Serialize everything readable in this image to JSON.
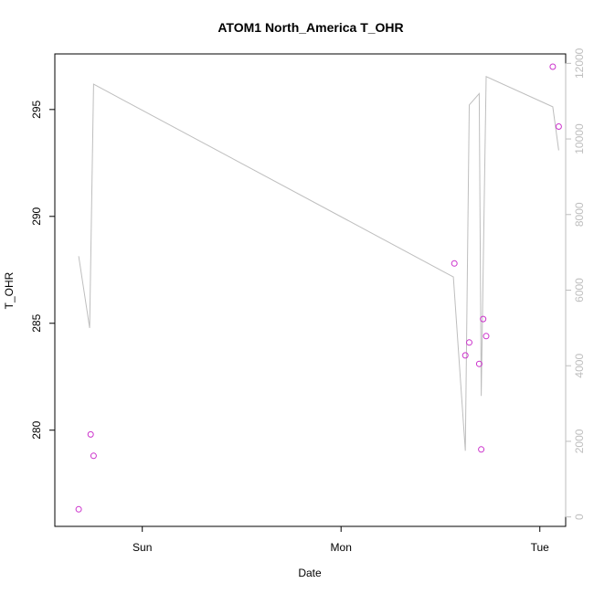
{
  "chart_data": {
    "type": "scatter",
    "title": "ATOM1 North_America T_OHR",
    "xlabel": "Date",
    "ylabel": "T_OHR",
    "x_ticks": [
      "Sun",
      "Mon",
      "Tue"
    ],
    "xlim_days": [
      -0.44,
      2.13
    ],
    "ylim": [
      275.5,
      297.6
    ],
    "y_ticks": [
      280,
      285,
      290,
      295
    ],
    "y2lim": [
      -250,
      12250
    ],
    "y2_ticks": [
      0,
      2000,
      4000,
      6000,
      8000,
      10000,
      12000
    ],
    "colors": {
      "points": "#cc33cc",
      "line": "#bebebe",
      "axis": "#000000",
      "axis_right": "#bebebe"
    },
    "points": [
      {
        "x": -0.32,
        "y": 276.3
      },
      {
        "x": -0.26,
        "y": 279.8
      },
      {
        "x": -0.245,
        "y": 278.8
      },
      {
        "x": 1.57,
        "y": 287.8
      },
      {
        "x": 1.625,
        "y": 283.5
      },
      {
        "x": 1.645,
        "y": 284.1
      },
      {
        "x": 1.695,
        "y": 283.1
      },
      {
        "x": 1.705,
        "y": 279.1
      },
      {
        "x": 1.715,
        "y": 285.2
      },
      {
        "x": 1.73,
        "y": 284.4
      },
      {
        "x": 2.065,
        "y": 297.0
      },
      {
        "x": 2.095,
        "y": 294.2
      }
    ],
    "line_series": [
      {
        "x": -0.32,
        "y": 6900
      },
      {
        "x": -0.265,
        "y": 5000
      },
      {
        "x": -0.245,
        "y": 11450
      },
      {
        "x": 1.565,
        "y": 6350
      },
      {
        "x": 1.625,
        "y": 1750
      },
      {
        "x": 1.645,
        "y": 10900
      },
      {
        "x": 1.695,
        "y": 11200
      },
      {
        "x": 1.705,
        "y": 3200
      },
      {
        "x": 1.73,
        "y": 11650
      },
      {
        "x": 2.065,
        "y": 10850
      },
      {
        "x": 2.095,
        "y": 9700
      }
    ]
  }
}
